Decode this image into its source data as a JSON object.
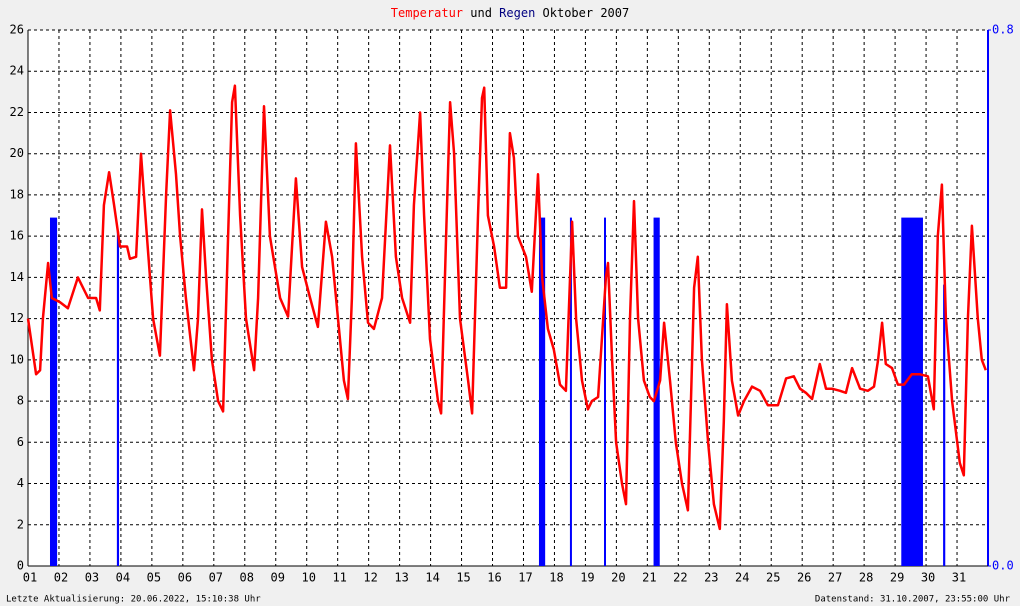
{
  "chart_data": {
    "type": "line",
    "title_join": "und",
    "title_period": "Oktober 2007",
    "footer_left": "Letzte Aktualisierung: 20.06.2022, 15:10:38 Uhr",
    "footer_right": "Datenstand: 31.10.2007, 23:55:00 Uhr",
    "grid": true,
    "xlim": [
      1,
      32
    ],
    "xticks": [
      {
        "value": 1,
        "label": "01"
      },
      {
        "value": 2,
        "label": "02"
      },
      {
        "value": 3,
        "label": "03"
      },
      {
        "value": 4,
        "label": "04"
      },
      {
        "value": 5,
        "label": "05"
      },
      {
        "value": 6,
        "label": "06"
      },
      {
        "value": 7,
        "label": "07"
      },
      {
        "value": 8,
        "label": "08"
      },
      {
        "value": 9,
        "label": "09"
      },
      {
        "value": 10,
        "label": "10"
      },
      {
        "value": 11,
        "label": "11"
      },
      {
        "value": 12,
        "label": "12"
      },
      {
        "value": 13,
        "label": "13"
      },
      {
        "value": 14,
        "label": "14"
      },
      {
        "value": 15,
        "label": "15"
      },
      {
        "value": 16,
        "label": "16"
      },
      {
        "value": 17,
        "label": "17"
      },
      {
        "value": 18,
        "label": "18"
      },
      {
        "value": 19,
        "label": "19"
      },
      {
        "value": 20,
        "label": "20"
      },
      {
        "value": 21,
        "label": "21"
      },
      {
        "value": 22,
        "label": "22"
      },
      {
        "value": 23,
        "label": "23"
      },
      {
        "value": 24,
        "label": "24"
      },
      {
        "value": 25,
        "label": "25"
      },
      {
        "value": 26,
        "label": "26"
      },
      {
        "value": 27,
        "label": "27"
      },
      {
        "value": 28,
        "label": "28"
      },
      {
        "value": 29,
        "label": "29"
      },
      {
        "value": 30,
        "label": "30"
      },
      {
        "value": 31,
        "label": "31"
      }
    ],
    "ylim": [
      0,
      26
    ],
    "yticks": [
      0,
      2,
      4,
      6,
      8,
      10,
      12,
      14,
      16,
      18,
      20,
      22,
      24,
      26
    ],
    "y2lim": [
      0,
      0.8
    ],
    "y2ticks": [
      {
        "value": 0,
        "label": "0.0"
      },
      {
        "value": 0.8,
        "label": "0.8"
      }
    ],
    "series": [
      {
        "name": "Temperatur",
        "color": "#ff0000",
        "x": [
          1.0,
          1.26,
          1.39,
          1.48,
          1.65,
          1.77,
          2.03,
          2.29,
          2.61,
          2.94,
          3.2,
          3.32,
          3.45,
          3.62,
          3.78,
          3.97,
          4.2,
          4.29,
          4.49,
          4.65,
          4.84,
          5.04,
          5.26,
          5.46,
          5.59,
          5.78,
          5.91,
          6.1,
          6.36,
          6.49,
          6.62,
          6.75,
          6.94,
          7.14,
          7.3,
          7.46,
          7.59,
          7.68,
          7.85,
          8.04,
          8.3,
          8.43,
          8.62,
          8.81,
          9.14,
          9.4,
          9.65,
          9.85,
          10.11,
          10.36,
          10.62,
          10.82,
          11.01,
          11.2,
          11.33,
          11.46,
          11.59,
          11.79,
          11.98,
          12.17,
          12.43,
          12.69,
          12.88,
          13.08,
          13.34,
          13.46,
          13.66,
          13.79,
          13.98,
          14.24,
          14.34,
          14.5,
          14.63,
          14.76,
          14.95,
          15.21,
          15.34,
          15.53,
          15.66,
          15.73,
          15.85,
          16.05,
          16.24,
          16.44,
          16.56,
          16.69,
          16.82,
          17.08,
          17.27,
          17.47,
          17.6,
          17.79,
          17.98,
          18.18,
          18.37,
          18.57,
          18.7,
          18.89,
          19.08,
          19.21,
          19.41,
          19.66,
          19.73,
          19.86,
          19.99,
          20.18,
          20.31,
          20.44,
          20.57,
          20.7,
          20.89,
          21.08,
          21.21,
          21.41,
          21.54,
          21.73,
          21.92,
          22.12,
          22.31,
          22.51,
          22.63,
          22.76,
          22.96,
          23.15,
          23.34,
          23.47,
          23.57,
          23.73,
          23.93,
          24.12,
          24.38,
          24.64,
          24.89,
          25.22,
          25.48,
          25.73,
          25.93,
          26.12,
          26.32,
          26.57,
          26.77,
          26.96,
          27.22,
          27.41,
          27.61,
          27.87,
          28.12,
          28.32,
          28.45,
          28.58,
          28.7,
          28.9,
          29.09,
          29.29,
          29.54,
          29.8,
          30.06,
          30.25,
          30.38,
          30.51,
          30.64,
          30.84,
          31.09,
          31.22,
          31.35,
          31.48,
          31.67,
          31.8,
          31.93
        ],
        "values": [
          12,
          9.3,
          9.5,
          12,
          14.7,
          13,
          12.8,
          12.5,
          14,
          13,
          13,
          12.4,
          17.5,
          19.1,
          17.5,
          15.5,
          15.5,
          14.9,
          15,
          20,
          16,
          12,
          10.2,
          18,
          22.1,
          19,
          16,
          13,
          9.5,
          12,
          17.3,
          14,
          10,
          8,
          7.5,
          16,
          22.5,
          23.3,
          17,
          12,
          9.5,
          13,
          22.3,
          16,
          13,
          12.1,
          18.8,
          14.5,
          13,
          11.6,
          16.7,
          15,
          12,
          9,
          8.1,
          13,
          20.5,
          15,
          11.8,
          11.5,
          13,
          20.4,
          15,
          13,
          11.8,
          17.5,
          22,
          17,
          11,
          8,
          7.4,
          16,
          22.5,
          20,
          12,
          9,
          7.4,
          17,
          22.7,
          23.2,
          17,
          15.5,
          13.5,
          13.5,
          21,
          19.8,
          16,
          15,
          13.3,
          19,
          14,
          11.5,
          10.5,
          8.8,
          8.5,
          16.7,
          12,
          9,
          7.6,
          8,
          8.2,
          14,
          14.7,
          10,
          6,
          4,
          3,
          12,
          17.7,
          12,
          9,
          8.2,
          8,
          9,
          11.8,
          9,
          6,
          4,
          2.7,
          13.5,
          15,
          10,
          6,
          3,
          1.8,
          7,
          12.7,
          9,
          7.3,
          8,
          8.7,
          8.5,
          7.8,
          7.8,
          9.1,
          9.2,
          8.6,
          8.4,
          8.1,
          9.8,
          8.6,
          8.6,
          8.5,
          8.4,
          9.6,
          8.6,
          8.5,
          8.7,
          10,
          11.8,
          9.8,
          9.6,
          8.8,
          8.8,
          9.3,
          9.3,
          9.2,
          7.6,
          16,
          18.5,
          12,
          8,
          5,
          4.4,
          12,
          16.5,
          12,
          10,
          9.5
        ]
      },
      {
        "name": "Regen",
        "color": "#0000ff",
        "title_color": "#000080",
        "axis": "y2",
        "x": [
          1.71,
          3.87,
          17.5,
          18.5,
          19.6,
          21.2,
          29.2,
          30.55
        ],
        "x_end": [
          1.94,
          3.94,
          17.7,
          18.56,
          19.66,
          21.4,
          29.9,
          30.62
        ],
        "values": [
          0.52,
          0.5,
          0.52,
          0.52,
          0.52,
          0.52,
          0.52,
          0.42
        ]
      }
    ]
  }
}
